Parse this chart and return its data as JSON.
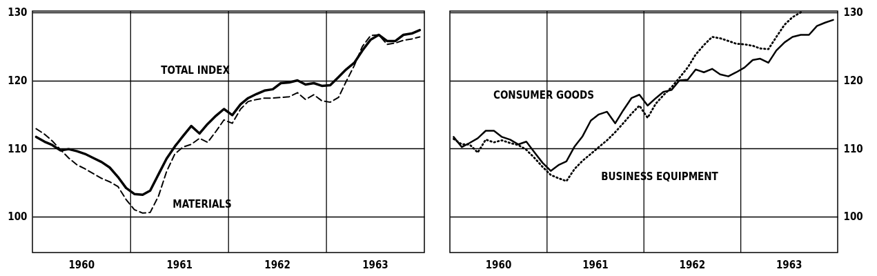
{
  "chart_data": [
    {
      "type": "line",
      "x": [
        "1960-01-15",
        "1960-02-15",
        "1960-03-15",
        "1960-04-15",
        "1960-05-15",
        "1960-06-15",
        "1960-07-15",
        "1960-08-15",
        "1960-09-15",
        "1960-10-15",
        "1960-11-15",
        "1960-12-15",
        "1961-01-15",
        "1961-02-15",
        "1961-03-15",
        "1961-04-15",
        "1961-05-15",
        "1961-06-15",
        "1961-07-15",
        "1961-08-15",
        "1961-09-15",
        "1961-10-15",
        "1961-11-15",
        "1961-12-15",
        "1962-01-15",
        "1962-02-15",
        "1962-03-15",
        "1962-04-15",
        "1962-05-15",
        "1962-06-15",
        "1962-07-15",
        "1962-08-15",
        "1962-09-15",
        "1962-10-15",
        "1962-11-15",
        "1962-12-15",
        "1963-01-15",
        "1963-02-15",
        "1963-03-15",
        "1963-04-15",
        "1963-05-15",
        "1963-06-15",
        "1963-07-15",
        "1963-08-15",
        "1963-09-15",
        "1963-10-15",
        "1963-11-15",
        "1963-12-15"
      ],
      "series": [
        {
          "name": "TOTAL INDEX",
          "color": "#000000",
          "line_style": "solid",
          "values": [
            111.7,
            111.0,
            110.5,
            109.7,
            109.9,
            109.6,
            109.2,
            108.6,
            108.0,
            107.2,
            105.8,
            104.2,
            103.3,
            103.2,
            103.8,
            106.2,
            108.5,
            110.3,
            111.8,
            113.3,
            112.2,
            113.6,
            114.8,
            115.8,
            114.9,
            116.5,
            117.4,
            118.0,
            118.5,
            118.7,
            119.6,
            119.7,
            120.0,
            119.4,
            119.6,
            119.2,
            119.3,
            120.5,
            121.6,
            122.6,
            124.4,
            126.0,
            126.7,
            125.8,
            125.8,
            126.7,
            126.9,
            127.4
          ]
        },
        {
          "name": "MATERIALS",
          "color": "#000000",
          "line_style": "dashed",
          "values": [
            112.9,
            112.1,
            111.1,
            109.8,
            108.6,
            107.6,
            107.0,
            106.3,
            105.6,
            105.1,
            104.4,
            102.5,
            101.0,
            100.5,
            100.6,
            103.0,
            106.6,
            109.2,
            110.2,
            110.6,
            111.5,
            110.9,
            112.5,
            114.2,
            113.7,
            115.8,
            116.9,
            117.2,
            117.4,
            117.4,
            117.5,
            117.6,
            118.2,
            117.2,
            117.9,
            117.0,
            116.8,
            117.5,
            119.8,
            122.2,
            125.0,
            126.6,
            126.7,
            125.3,
            125.5,
            125.9,
            126.1,
            126.4
          ]
        }
      ],
      "xlim": [
        "1960-01-01",
        "1964-01-01"
      ],
      "xticks": [
        {
          "value": "1960-07-01",
          "label": "1960"
        },
        {
          "value": "1961-07-01",
          "label": "1961"
        },
        {
          "value": "1962-07-01",
          "label": "1962"
        },
        {
          "value": "1963-07-01",
          "label": "1963"
        }
      ],
      "ylim": [
        94.7,
        130.2
      ],
      "yticks": [
        100,
        110,
        120,
        130
      ],
      "grid": "y",
      "ref_lines": [
        {
          "axis": "x",
          "value": "1961-01-01",
          "color": "#000000"
        },
        {
          "axis": "x",
          "value": "1962-01-01",
          "color": "#000000"
        },
        {
          "axis": "x",
          "value": "1963-01-01",
          "color": "#000000"
        }
      ]
    },
    {
      "type": "line",
      "x": [
        "1960-01-15",
        "1960-02-15",
        "1960-03-15",
        "1960-04-15",
        "1960-05-15",
        "1960-06-15",
        "1960-07-15",
        "1960-08-15",
        "1960-09-15",
        "1960-10-15",
        "1960-11-15",
        "1960-12-15",
        "1961-01-15",
        "1961-02-15",
        "1961-03-15",
        "1961-04-15",
        "1961-05-15",
        "1961-06-15",
        "1961-07-15",
        "1961-08-15",
        "1961-09-15",
        "1961-10-15",
        "1961-11-15",
        "1961-12-15",
        "1962-01-15",
        "1962-02-15",
        "1962-03-15",
        "1962-04-15",
        "1962-05-15",
        "1962-06-15",
        "1962-07-15",
        "1962-08-15",
        "1962-09-15",
        "1962-10-15",
        "1962-11-15",
        "1962-12-15",
        "1963-01-15",
        "1963-02-15",
        "1963-03-15",
        "1963-04-15",
        "1963-05-15",
        "1963-06-15",
        "1963-07-15",
        "1963-08-15",
        "1963-09-15",
        "1963-10-15",
        "1963-11-15",
        "1963-12-15"
      ],
      "series": [
        {
          "name": "CONSUMER GOODS",
          "color": "#000000",
          "line_style": "solid",
          "values": [
            111.7,
            110.2,
            110.8,
            111.5,
            112.6,
            112.6,
            111.7,
            111.3,
            110.6,
            111.0,
            109.4,
            107.9,
            106.7,
            107.6,
            108.1,
            110.3,
            111.8,
            114.1,
            115.0,
            115.4,
            113.7,
            115.6,
            117.4,
            117.9,
            116.3,
            117.4,
            118.3,
            118.6,
            120.0,
            120.1,
            121.6,
            121.2,
            121.7,
            120.9,
            120.6,
            121.2,
            121.9,
            123.0,
            123.2,
            122.6,
            124.4,
            125.6,
            126.4,
            126.7,
            126.7,
            128.0,
            128.5,
            128.9
          ]
        },
        {
          "name": "BUSINESS EQUIPMENT",
          "color": "#000000",
          "line_style": "dotted",
          "values": [
            111.4,
            110.6,
            110.6,
            109.4,
            111.3,
            110.9,
            111.2,
            110.8,
            110.5,
            109.8,
            108.6,
            107.3,
            106.1,
            105.6,
            105.2,
            107.0,
            108.2,
            109.2,
            110.2,
            111.2,
            112.4,
            113.7,
            115.1,
            116.3,
            114.5,
            116.6,
            117.8,
            119.0,
            120.4,
            121.9,
            123.8,
            125.2,
            126.4,
            126.2,
            125.8,
            125.4,
            125.3,
            125.1,
            124.7,
            124.6,
            126.4,
            128.2,
            129.3,
            130.0,
            null,
            null,
            null,
            null
          ]
        }
      ],
      "xlim": [
        "1960-01-01",
        "1964-01-01"
      ],
      "xticks": [
        {
          "value": "1960-07-01",
          "label": "1960"
        },
        {
          "value": "1961-07-01",
          "label": "1961"
        },
        {
          "value": "1962-07-01",
          "label": "1962"
        },
        {
          "value": "1963-07-01",
          "label": "1963"
        }
      ],
      "ylim": [
        94.7,
        130.2
      ],
      "yticks": [
        100,
        110,
        120,
        130
      ],
      "grid": "y",
      "ref_lines": [
        {
          "axis": "x",
          "value": "1961-01-01",
          "color": "#000000"
        },
        {
          "axis": "x",
          "value": "1962-01-01",
          "color": "#000000"
        },
        {
          "axis": "x",
          "value": "1963-01-01",
          "color": "#000000"
        }
      ]
    }
  ]
}
